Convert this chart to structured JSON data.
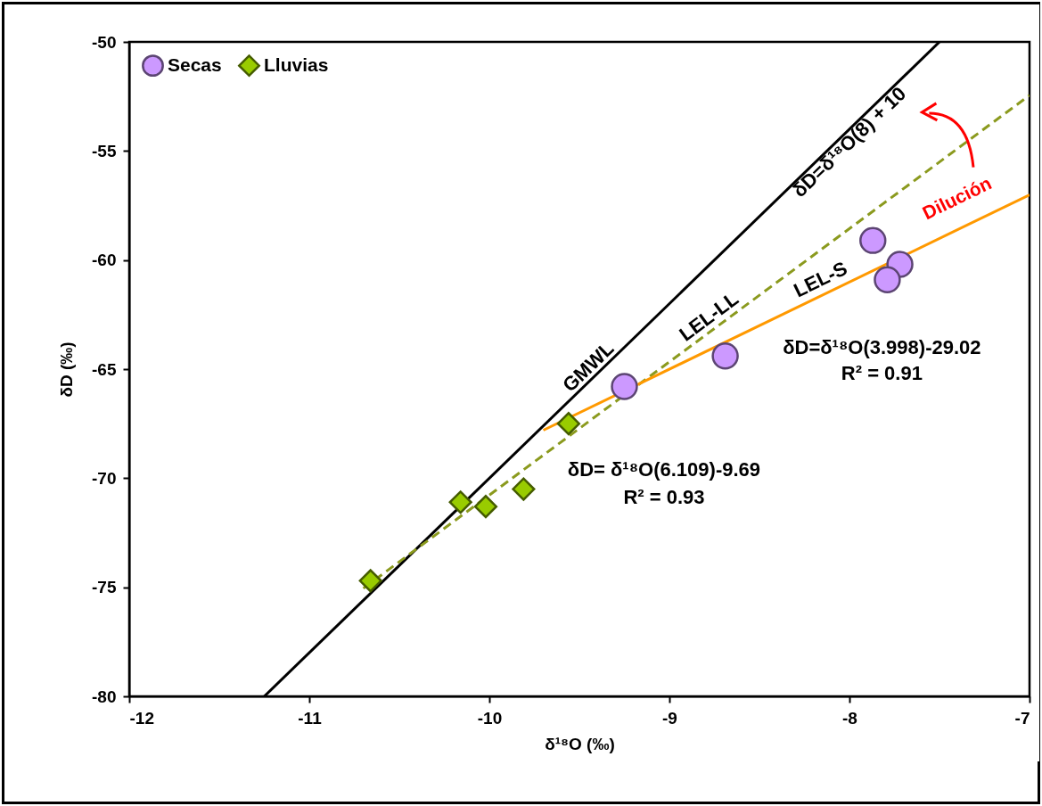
{
  "chart_data": {
    "type": "scatter",
    "xlabel": "δ¹⁸O (‰)",
    "ylabel": "δD (‰)",
    "xlim": [
      -12,
      -7
    ],
    "xticks": [
      -12,
      -11,
      -10,
      -9,
      -8,
      -7
    ],
    "ylim": [
      -80,
      -50
    ],
    "yticks": [
      -80,
      -75,
      -70,
      -65,
      -60,
      -55,
      -50
    ],
    "grid": false,
    "legend": "top left",
    "series": [
      {
        "type": "line",
        "color": "#000000",
        "line_style": "solid",
        "x": [
          -11.25,
          -7.5
        ],
        "values": [
          -80,
          -50
        ]
      },
      {
        "type": "line",
        "color": "#8b9a1e",
        "line_style": "dashed",
        "x": [
          -10.7,
          -7
        ],
        "values": [
          -75.05,
          -52.45
        ]
      },
      {
        "type": "line",
        "color": "#ff9900",
        "line_style": "solid",
        "x": [
          -9.7,
          -7
        ],
        "values": [
          -67.8,
          -57.01
        ]
      },
      {
        "name": "Secas",
        "color": "#cc99ff",
        "marker": "circle",
        "x": [
          -7.87,
          -7.72,
          -7.79,
          -8.69,
          -9.25
        ],
        "values": [
          -59.1,
          -60.2,
          -60.9,
          -64.4,
          -65.8
        ]
      },
      {
        "name": "Lluvias",
        "color": "#99cc00",
        "marker": "diamond",
        "x": [
          -9.56,
          -9.81,
          -10.02,
          -10.16,
          -10.66
        ],
        "values": [
          -67.5,
          -70.5,
          -71.3,
          -71.1,
          -74.7
        ]
      }
    ],
    "annotations": [
      "GMWL",
      "δD=δ¹⁸O(8) + 10",
      "LEL-LL",
      "LEL-S",
      "Dilución",
      "δD=δ¹⁸O(3.998)-29.02",
      "R² = 0.91",
      "δD= δ¹⁸O(6.109)-9.69",
      "R² = 0.93"
    ]
  }
}
